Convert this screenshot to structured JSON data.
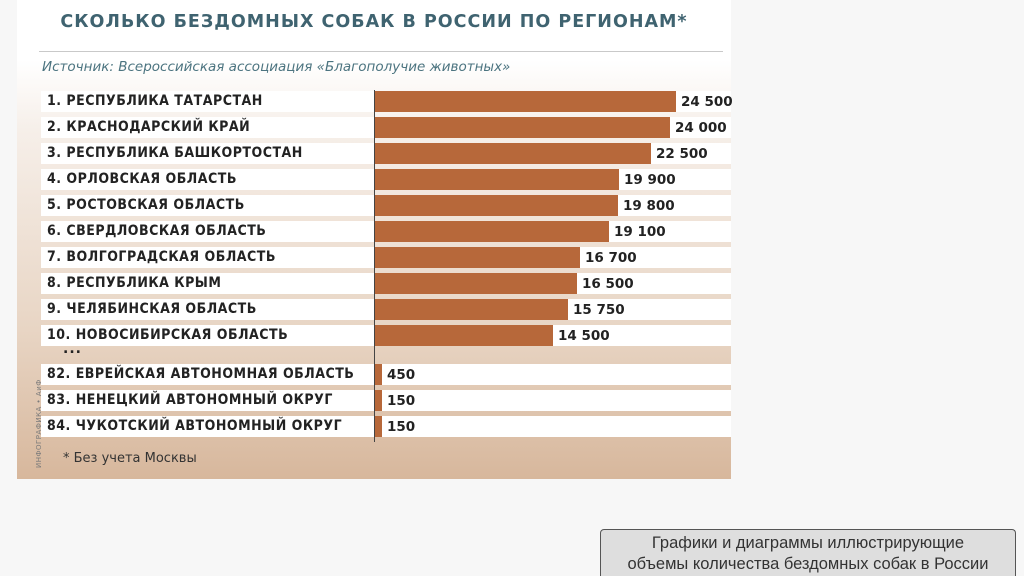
{
  "chart_data": {
    "type": "bar",
    "orientation": "horizontal",
    "title": "СКОЛЬКО БЕЗДОМНЫХ СОБАК В РОССИИ ПО РЕГИОНАМ*",
    "subtitle": "Источник: Всероссийская ассоциация «Благополучие животных»",
    "categories": [
      "1. РЕСПУБЛИКА ТАТАРСТАН",
      "2. КРАСНОДАРСКИЙ КРАЙ",
      "3. РЕСПУБЛИКА БАШКОРТОСТАН",
      "4. ОРЛОВСКАЯ ОБЛАСТЬ",
      "5. РОСТОВСКАЯ ОБЛАСТЬ",
      "6. СВЕРДЛОВСКАЯ ОБЛАСТЬ",
      "7. ВОЛГОГРАДСКАЯ ОБЛАСТЬ",
      "8. РЕСПУБЛИКА КРЫМ",
      "9. ЧЕЛЯБИНСКАЯ ОБЛАСТЬ",
      "10. НОВОСИБИРСКАЯ ОБЛАСТЬ",
      "82. ЕВРЕЙСКАЯ АВТОНОМНАЯ ОБЛАСТЬ",
      "83. НЕНЕЦКИЙ АВТОНОМНЫЙ ОКРУГ",
      "84. ЧУКОТСКИЙ АВТОНОМНЫЙ ОКРУГ"
    ],
    "values": [
      24500,
      24000,
      22500,
      19900,
      19800,
      19100,
      16700,
      16500,
      15750,
      14500,
      450,
      150,
      150
    ],
    "value_labels": [
      "24 500",
      "24 000",
      "22 500",
      "19 900",
      "19 800",
      "19 100",
      "16 700",
      "16 500",
      "15 750",
      "14 500",
      "450",
      "150",
      "150"
    ],
    "bar_color": "#b7683a",
    "ellipsis": "...",
    "footnote": "* Без учета Москвы",
    "credit": "ИНФОГРАФИКА • АиФ",
    "xlim": [
      0,
      24500
    ]
  },
  "colors": {
    "title": "#3f6370",
    "source": "#4c7480",
    "bar": "#b7683a"
  },
  "caption": {
    "line1": "Графики и диаграммы иллюстрирующие",
    "line2": "объемы количества бездомных собак в России"
  }
}
